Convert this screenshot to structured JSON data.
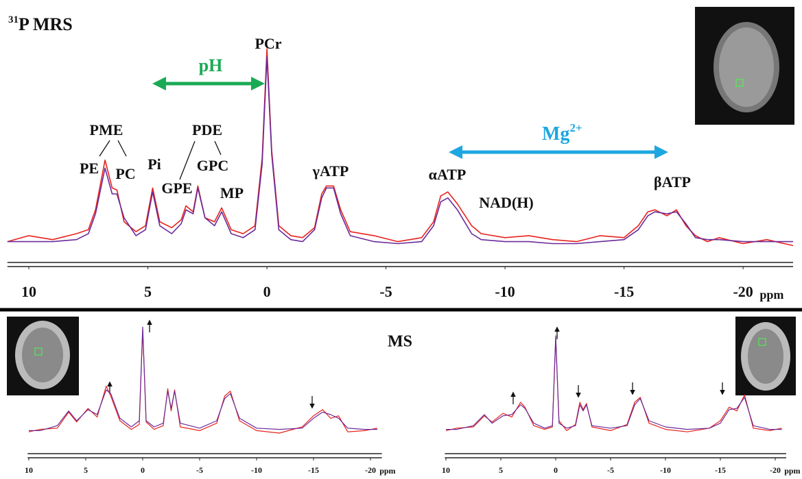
{
  "chart_data": [
    {
      "type": "line",
      "title_superscript": "31",
      "title": "P MRS",
      "x_label": "ppm",
      "xlim": [
        10.9,
        -22.1
      ],
      "ylim": [
        0,
        105
      ],
      "xticks": [
        10,
        5,
        0,
        -5,
        -10,
        -15,
        -20
      ],
      "x": [
        10.9,
        10,
        9,
        8,
        7.5,
        7.2,
        6.8,
        6.5,
        6.3,
        6,
        5.5,
        5.1,
        4.8,
        4.5,
        4,
        3.6,
        3.4,
        3.1,
        2.9,
        2.6,
        2.2,
        1.9,
        1.5,
        1,
        0.5,
        0.2,
        0,
        -0.2,
        -0.5,
        -1,
        -1.5,
        -2,
        -2.3,
        -2.5,
        -2.8,
        -3.1,
        -3.5,
        -4.5,
        -5.5,
        -6.5,
        -7,
        -7.3,
        -7.6,
        -8,
        -8.6,
        -9,
        -10,
        -11,
        -12,
        -13,
        -14,
        -15,
        -15.6,
        -16,
        -16.3,
        -16.8,
        -17.2,
        -17.6,
        -18,
        -18.5,
        -19,
        -20,
        -21,
        -22.1
      ],
      "series": [
        {
          "color": "#e8211c",
          "values": [
            6,
            9,
            7,
            10,
            12,
            22,
            47,
            33,
            32,
            16,
            11,
            14,
            33,
            16,
            13,
            17,
            24,
            21,
            34,
            18,
            16,
            23,
            12,
            10,
            14,
            48,
            103,
            52,
            14,
            9,
            8,
            13,
            30,
            34,
            34,
            22,
            11,
            9,
            6,
            8,
            16,
            29,
            31,
            25,
            14,
            10,
            8,
            9,
            7,
            6,
            9,
            8,
            14,
            21,
            22,
            19,
            22,
            14,
            9,
            6,
            8,
            5,
            7,
            4
          ]
        },
        {
          "color": "#6a2a9a",
          "values": [
            6,
            6,
            6,
            7,
            10,
            20,
            43,
            30,
            30,
            18,
            9,
            12,
            31,
            14,
            10,
            15,
            22,
            20,
            33,
            18,
            14,
            21,
            10,
            8,
            12,
            45,
            99,
            50,
            12,
            7,
            6,
            12,
            28,
            33,
            33,
            20,
            9,
            6,
            5,
            6,
            14,
            26,
            28,
            22,
            10,
            7,
            6,
            6,
            5,
            5,
            6,
            7,
            12,
            19,
            21,
            20,
            21,
            15,
            8,
            7,
            7,
            6,
            6,
            6
          ]
        }
      ],
      "annotations": [
        "PME",
        "PE",
        "PC",
        "Pi",
        "PDE",
        "GPE",
        "GPC",
        "MP",
        "PCr",
        "γATP",
        "αATP",
        "NAD(H)",
        "βATP"
      ],
      "ph_label": "pH",
      "mg_label": "Mg",
      "mg_superscript": "2+"
    },
    {
      "type": "line",
      "x_label": "ppm",
      "xlim": [
        10.1,
        -21
      ],
      "ylim": [
        0,
        100
      ],
      "xticks": [
        10,
        5,
        0,
        -5,
        -10,
        -15,
        -20
      ],
      "x": [
        10,
        9,
        7.5,
        6.5,
        5.8,
        4.8,
        4,
        3.2,
        2.8,
        2,
        1,
        0.3,
        0,
        -0.3,
        -1,
        -1.8,
        -2.2,
        -2.5,
        -2.8,
        -3.3,
        -5,
        -6.5,
        -7.2,
        -7.7,
        -8.5,
        -10,
        -12,
        -14,
        -15,
        -15.8,
        -16.5,
        -17.2,
        -18,
        -19.5,
        -20.6
      ],
      "series": [
        {
          "color": "#e8211c",
          "values": [
            11,
            13,
            14,
            27,
            19,
            30,
            23,
            48,
            40,
            20,
            13,
            17,
            94,
            19,
            13,
            16,
            46,
            28,
            45,
            15,
            12,
            18,
            40,
            44,
            20,
            12,
            10,
            15,
            24,
            29,
            22,
            24,
            11,
            12,
            14
          ]
        },
        {
          "color": "#6a2a9a",
          "values": [
            12,
            12,
            16,
            28,
            20,
            29,
            25,
            45,
            42,
            22,
            15,
            20,
            96,
            20,
            15,
            18,
            44,
            30,
            44,
            18,
            14,
            20,
            38,
            42,
            22,
            14,
            13,
            14,
            22,
            27,
            25,
            22,
            14,
            13,
            13
          ]
        }
      ]
    },
    {
      "type": "line",
      "title": "MS",
      "x_label": "ppm",
      "xlim": [
        10.1,
        -21
      ],
      "ylim": [
        0,
        100
      ],
      "xticks": [
        10,
        5,
        0,
        -5,
        -10,
        -15,
        -20
      ],
      "x": [
        10,
        9,
        7.5,
        6.5,
        5.8,
        4.8,
        4,
        3.2,
        2.8,
        2,
        1,
        0.3,
        0,
        -0.3,
        -1,
        -1.8,
        -2.2,
        -2.5,
        -2.8,
        -3.3,
        -5,
        -6.5,
        -7.2,
        -7.7,
        -8.5,
        -10,
        -12,
        -14,
        -15,
        -15.8,
        -16.5,
        -17.2,
        -18,
        -19.5,
        -20.6
      ],
      "series": [
        {
          "color": "#e8211c",
          "values": [
            12,
            14,
            15,
            24,
            19,
            26,
            23,
            35,
            31,
            16,
            13,
            15,
            87,
            20,
            12,
            17,
            35,
            29,
            34,
            15,
            12,
            17,
            35,
            39,
            18,
            13,
            11,
            14,
            20,
            31,
            28,
            41,
            14,
            12,
            14
          ]
        },
        {
          "color": "#6a2a9a",
          "values": [
            13,
            13,
            16,
            25,
            18,
            24,
            25,
            33,
            30,
            18,
            14,
            16,
            89,
            18,
            14,
            16,
            33,
            28,
            33,
            16,
            14,
            16,
            33,
            38,
            20,
            15,
            13,
            14,
            18,
            29,
            30,
            39,
            16,
            13,
            13
          ]
        }
      ]
    }
  ]
}
